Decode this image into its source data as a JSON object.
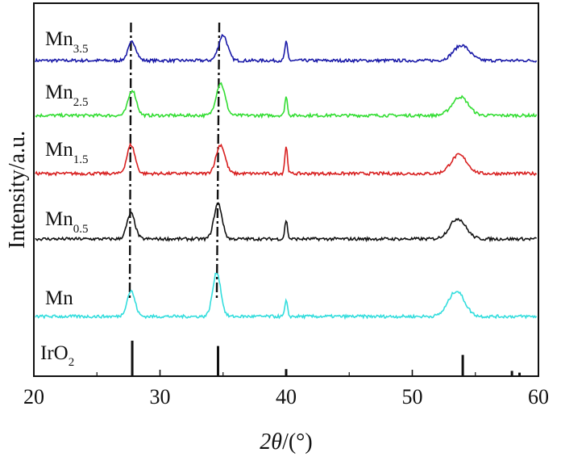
{
  "chart_data": {
    "type": "line",
    "xlabel": "2θ/(°)",
    "xlabel_parts": {
      "italic": "2θ",
      "rest": "/(°)"
    },
    "ylabel": "Intensity/a.u.",
    "xlim": [
      20,
      60
    ],
    "xticks": [
      20,
      30,
      40,
      50,
      60
    ],
    "minor_xticks": [
      25,
      35,
      45,
      55
    ],
    "grid": false,
    "legend": "labels placed left of each curve",
    "series": [
      {
        "name": "Mn3.5",
        "label_main": "Mn",
        "label_sub": "3.5",
        "color": "#1a1aa8",
        "offset": 4,
        "peaks": [
          {
            "x": 27.8,
            "h": 0.55,
            "w": 0.45
          },
          {
            "x": 35.0,
            "h": 0.75,
            "w": 0.5
          },
          {
            "x": 40.0,
            "h": 0.55,
            "w": 0.15
          },
          {
            "x": 53.9,
            "h": 0.45,
            "w": 0.9
          }
        ]
      },
      {
        "name": "Mn2.5",
        "label_main": "Mn",
        "label_sub": "2.5",
        "color": "#33dd33",
        "offset": 3,
        "peaks": [
          {
            "x": 27.8,
            "h": 0.75,
            "w": 0.45
          },
          {
            "x": 34.8,
            "h": 0.95,
            "w": 0.5
          },
          {
            "x": 40.0,
            "h": 0.55,
            "w": 0.15
          },
          {
            "x": 53.8,
            "h": 0.55,
            "w": 0.9
          }
        ]
      },
      {
        "name": "Mn1.5",
        "label_main": "Mn",
        "label_sub": "1.5",
        "color": "#d82020",
        "offset": 2,
        "peaks": [
          {
            "x": 27.7,
            "h": 0.85,
            "w": 0.45
          },
          {
            "x": 34.8,
            "h": 0.85,
            "w": 0.5
          },
          {
            "x": 40.0,
            "h": 0.8,
            "w": 0.15
          },
          {
            "x": 53.7,
            "h": 0.55,
            "w": 0.9
          }
        ]
      },
      {
        "name": "Mn0.5",
        "label_main": "Mn",
        "label_sub": "0.5",
        "color": "#111111",
        "offset": 1,
        "peaks": [
          {
            "x": 27.7,
            "h": 0.75,
            "w": 0.45
          },
          {
            "x": 34.6,
            "h": 1.05,
            "w": 0.45
          },
          {
            "x": 40.0,
            "h": 0.55,
            "w": 0.15
          },
          {
            "x": 53.6,
            "h": 0.6,
            "w": 0.9
          }
        ]
      },
      {
        "name": "Mn",
        "label_main": "Mn",
        "label_sub": "",
        "color": "#33dddd",
        "offset": 0,
        "peaks": [
          {
            "x": 27.7,
            "h": 0.75,
            "w": 0.45
          },
          {
            "x": 34.5,
            "h": 1.3,
            "w": 0.45
          },
          {
            "x": 40.0,
            "h": 0.45,
            "w": 0.15
          },
          {
            "x": 53.5,
            "h": 0.75,
            "w": 0.9
          }
        ]
      }
    ],
    "reference": {
      "name": "IrO2",
      "label_main": "IrO",
      "label_sub": "2",
      "sticks": [
        {
          "x": 27.8,
          "h": 1.0
        },
        {
          "x": 34.6,
          "h": 0.85
        },
        {
          "x": 40.0,
          "h": 0.2
        },
        {
          "x": 54.0,
          "h": 0.6
        },
        {
          "x": 57.9,
          "h": 0.15
        },
        {
          "x": 58.5,
          "h": 0.1
        }
      ]
    },
    "guide_lines": [
      {
        "x_top": 27.7,
        "x_bottom": 27.6
      },
      {
        "x_top": 34.7,
        "x_bottom": 34.5
      }
    ]
  }
}
